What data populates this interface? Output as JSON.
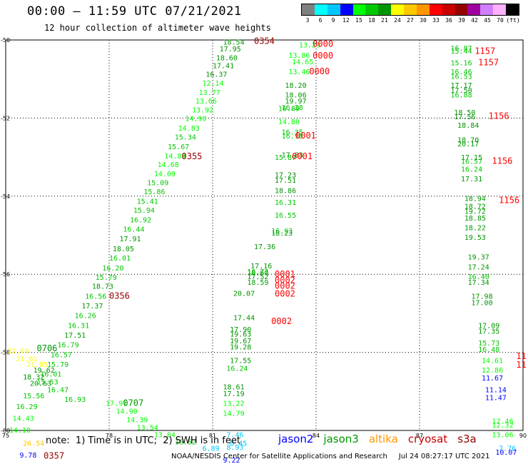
{
  "title": "00:00 – 11:59 UTC 07/21/2021",
  "subtitle": "12 hour collection of altimeter wave heights",
  "legend": {
    "labels": [
      "3",
      "6",
      "9",
      "12",
      "15",
      "18",
      "21",
      "24",
      "27",
      "30",
      "33",
      "36",
      "39",
      "42",
      "45",
      "70",
      "(ft)"
    ],
    "colors": [
      "#808080",
      "#00ffff",
      "#00c8ff",
      "#0000ff",
      "#00ff00",
      "#00c800",
      "#009600",
      "#ffff00",
      "#ffc800",
      "#ff9600",
      "#ff0000",
      "#c80000",
      "#960000",
      "#a000a0",
      "#d080ff",
      "#ffb0ff",
      "#000000"
    ]
  },
  "axes": {
    "lon": [
      75,
      90
    ],
    "lat": [
      -50,
      -60
    ],
    "x_ticks": [
      "75",
      "78",
      "81",
      "84",
      "87",
      "90"
    ],
    "y_ticks": [
      "-50",
      "-52",
      "-54",
      "-56",
      "-58",
      "-60"
    ],
    "grid": true
  },
  "wave_labels": [
    {
      "t": "18.54",
      "lon": 81.3,
      "lat": -50.05,
      "c": "#009600"
    },
    {
      "t": "17.95",
      "lon": 81.2,
      "lat": -50.22,
      "c": "#009600"
    },
    {
      "t": "18.60",
      "lon": 81.1,
      "lat": -50.45,
      "c": "#009600"
    },
    {
      "t": "17.41",
      "lon": 81.0,
      "lat": -50.65,
      "c": "#009600"
    },
    {
      "t": "16.37",
      "lon": 80.8,
      "lat": -50.87,
      "c": "#009600"
    },
    {
      "t": "12.14",
      "lon": 80.7,
      "lat": -51.1,
      "c": "#00ff00"
    },
    {
      "t": "13.77",
      "lon": 80.6,
      "lat": -51.33,
      "c": "#00ff00"
    },
    {
      "t": "13.66",
      "lon": 80.5,
      "lat": -51.55,
      "c": "#00ff00"
    },
    {
      "t": "13.92",
      "lon": 80.4,
      "lat": -51.78,
      "c": "#00ff00"
    },
    {
      "t": "14.90",
      "lon": 80.2,
      "lat": -52.0,
      "c": "#00ff00"
    },
    {
      "t": "14.83",
      "lon": 80.0,
      "lat": -52.25,
      "c": "#00ff00"
    },
    {
      "t": "15.34",
      "lon": 79.9,
      "lat": -52.48,
      "c": "#00c800"
    },
    {
      "t": "15.67",
      "lon": 79.7,
      "lat": -52.72,
      "c": "#00c800"
    },
    {
      "t": "14.89",
      "lon": 79.6,
      "lat": -52.96,
      "c": "#00ff00"
    },
    {
      "t": "14.68",
      "lon": 79.4,
      "lat": -53.18,
      "c": "#00ff00"
    },
    {
      "t": "14.09",
      "lon": 79.3,
      "lat": -53.42,
      "c": "#00ff00"
    },
    {
      "t": "15.09",
      "lon": 79.1,
      "lat": -53.65,
      "c": "#00c800"
    },
    {
      "t": "15.86",
      "lon": 79.0,
      "lat": -53.88,
      "c": "#00c800"
    },
    {
      "t": "15.41",
      "lon": 78.8,
      "lat": -54.12,
      "c": "#00c800"
    },
    {
      "t": "15.94",
      "lon": 78.7,
      "lat": -54.35,
      "c": "#00c800"
    },
    {
      "t": "16.92",
      "lon": 78.6,
      "lat": -54.6,
      "c": "#00c800"
    },
    {
      "t": "16.44",
      "lon": 78.4,
      "lat": -54.84,
      "c": "#00c800"
    },
    {
      "t": "17.91",
      "lon": 78.3,
      "lat": -55.08,
      "c": "#009600"
    },
    {
      "t": "18.05",
      "lon": 78.1,
      "lat": -55.34,
      "c": "#009600"
    },
    {
      "t": "16.01",
      "lon": 78.0,
      "lat": -55.58,
      "c": "#00c800"
    },
    {
      "t": "16.20",
      "lon": 77.8,
      "lat": -55.83,
      "c": "#00c800"
    },
    {
      "t": "15.79",
      "lon": 77.6,
      "lat": -56.07,
      "c": "#00c800"
    },
    {
      "t": "18.73",
      "lon": 77.5,
      "lat": -56.3,
      "c": "#009600"
    },
    {
      "t": "16.56",
      "lon": 77.3,
      "lat": -56.55,
      "c": "#00c800"
    },
    {
      "t": "17.37",
      "lon": 77.2,
      "lat": -56.8,
      "c": "#009600"
    },
    {
      "t": "16.26",
      "lon": 77.0,
      "lat": -57.05,
      "c": "#00c800"
    },
    {
      "t": "16.31",
      "lon": 76.8,
      "lat": -57.3,
      "c": "#00c800"
    },
    {
      "t": "17.51",
      "lon": 76.7,
      "lat": -57.55,
      "c": "#009600"
    },
    {
      "t": "16.79",
      "lon": 76.5,
      "lat": -57.8,
      "c": "#00c800"
    },
    {
      "t": "16.57",
      "lon": 76.3,
      "lat": -58.05,
      "c": "#00c800"
    },
    {
      "t": "15.79",
      "lon": 76.2,
      "lat": -58.3,
      "c": "#00c800"
    },
    {
      "t": "16.01",
      "lon": 76.0,
      "lat": -58.55,
      "c": "#00c800"
    },
    {
      "t": "15.53",
      "lon": 75.9,
      "lat": -58.75,
      "c": "#00c800"
    },
    {
      "t": "16.47",
      "lon": 76.2,
      "lat": -58.95,
      "c": "#00c800"
    },
    {
      "t": "15.56",
      "lon": 75.5,
      "lat": -59.1,
      "c": "#00c800"
    },
    {
      "t": "16.93",
      "lon": 76.7,
      "lat": -59.2,
      "c": "#00c800"
    },
    {
      "t": "16.29",
      "lon": 75.3,
      "lat": -59.38,
      "c": "#00c800"
    },
    {
      "t": "14.43",
      "lon": 75.2,
      "lat": -59.68,
      "c": "#00ff00"
    },
    {
      "t": "14.10",
      "lon": 75.1,
      "lat": -59.98,
      "c": "#00ff00"
    },
    {
      "t": "21.69",
      "lon": 75.05,
      "lat": -57.95,
      "c": "#ffff00"
    },
    {
      "t": "21.61",
      "lon": 75.3,
      "lat": -58.15,
      "c": "#ffff00"
    },
    {
      "t": "21.05",
      "lon": 75.6,
      "lat": -58.3,
      "c": "#ffff00"
    },
    {
      "t": "19.62",
      "lon": 75.8,
      "lat": -58.45,
      "c": "#009600"
    },
    {
      "t": "18.32",
      "lon": 75.5,
      "lat": -58.62,
      "c": "#009600"
    },
    {
      "t": "20.63",
      "lon": 75.7,
      "lat": -58.78,
      "c": "#009600"
    },
    {
      "t": "26.54",
      "lon": 75.5,
      "lat": -60.32,
      "c": "#ffc800"
    },
    {
      "t": "9.78",
      "lon": 75.4,
      "lat": -60.62,
      "c": "#0000ff"
    },
    {
      "t": "17.91",
      "lon": 77.9,
      "lat": -59.3,
      "c": "#00ff00"
    },
    {
      "t": "14.90",
      "lon": 78.2,
      "lat": -59.5,
      "c": "#00ff00"
    },
    {
      "t": "14.39",
      "lon": 78.5,
      "lat": -59.72,
      "c": "#00ff00"
    },
    {
      "t": "13.54",
      "lon": 78.8,
      "lat": -59.92,
      "c": "#00ff00"
    },
    {
      "t": "13.84",
      "lon": 79.3,
      "lat": -60.1,
      "c": "#00ff00"
    },
    {
      "t": "16.52",
      "lon": 79.9,
      "lat": -60.28,
      "c": "#00c800"
    },
    {
      "t": "6.89",
      "lon": 80.7,
      "lat": -60.45,
      "c": "#00c8ff"
    },
    {
      "t": "9.22",
      "lon": 81.3,
      "lat": -60.75,
      "c": "#0000ff"
    },
    {
      "t": "7.46",
      "lon": 81.4,
      "lat": -60.1,
      "c": "#00c8ff"
    },
    {
      "t": "8.45",
      "lon": 81.5,
      "lat": -60.32,
      "c": "#00c8ff"
    },
    {
      "t": "8.93",
      "lon": 81.4,
      "lat": -60.42,
      "c": "#00c8ff"
    },
    {
      "t": "18.61",
      "lon": 81.3,
      "lat": -58.88,
      "c": "#009600"
    },
    {
      "t": "17.19",
      "lon": 81.3,
      "lat": -59.05,
      "c": "#009600"
    },
    {
      "t": "13.22",
      "lon": 81.3,
      "lat": -59.3,
      "c": "#00ff00"
    },
    {
      "t": "14.79",
      "lon": 81.3,
      "lat": -59.55,
      "c": "#00ff00"
    },
    {
      "t": "17.55",
      "lon": 81.5,
      "lat": -58.2,
      "c": "#009600"
    },
    {
      "t": "16.24",
      "lon": 81.4,
      "lat": -58.4,
      "c": "#00c800"
    },
    {
      "t": "17.44",
      "lon": 81.6,
      "lat": -57.1,
      "c": "#009600"
    },
    {
      "t": "17.90",
      "lon": 81.5,
      "lat": -57.4,
      "c": "#009600"
    },
    {
      "t": "19.63",
      "lon": 81.5,
      "lat": -57.52,
      "c": "#009600"
    },
    {
      "t": "19.67",
      "lon": 81.5,
      "lat": -57.7,
      "c": "#009600"
    },
    {
      "t": "19.28",
      "lon": 81.5,
      "lat": -57.85,
      "c": "#009600"
    },
    {
      "t": "20.07",
      "lon": 81.6,
      "lat": -56.48,
      "c": "#009600"
    },
    {
      "t": "18.60",
      "lon": 82.0,
      "lat": -55.95,
      "c": "#009600"
    },
    {
      "t": "17.16",
      "lon": 82.1,
      "lat": -55.78,
      "c": "#009600"
    },
    {
      "t": "16.73",
      "lon": 82.0,
      "lat": -55.92,
      "c": "#00c800"
    },
    {
      "t": "17.52",
      "lon": 82.0,
      "lat": -56.05,
      "c": "#009600"
    },
    {
      "t": "18.59",
      "lon": 82.0,
      "lat": -56.2,
      "c": "#009600"
    },
    {
      "t": "17.36",
      "lon": 82.2,
      "lat": -55.28,
      "c": "#009600"
    },
    {
      "t": "16.93",
      "lon": 82.7,
      "lat": -54.88,
      "c": "#00c800"
    },
    {
      "t": "18.23",
      "lon": 82.7,
      "lat": -54.94,
      "c": "#009600"
    },
    {
      "t": "16.55",
      "lon": 82.8,
      "lat": -54.48,
      "c": "#00c800"
    },
    {
      "t": "16.31",
      "lon": 82.8,
      "lat": -54.15,
      "c": "#00c800"
    },
    {
      "t": "18.86",
      "lon": 82.8,
      "lat": -53.85,
      "c": "#009600"
    },
    {
      "t": "17.51",
      "lon": 82.8,
      "lat": -53.58,
      "c": "#009600"
    },
    {
      "t": "17.23",
      "lon": 82.8,
      "lat": -53.45,
      "c": "#009600"
    },
    {
      "t": "17.83",
      "lon": 83.0,
      "lat": -52.93,
      "c": "#009600"
    },
    {
      "t": "15.87",
      "lon": 82.8,
      "lat": -53.0,
      "c": "#00c800"
    },
    {
      "t": "16.35",
      "lon": 83.0,
      "lat": -52.35,
      "c": "#00c800"
    },
    {
      "t": "16.98",
      "lon": 83.0,
      "lat": -52.45,
      "c": "#00c800"
    },
    {
      "t": "14.80",
      "lon": 82.9,
      "lat": -52.08,
      "c": "#00ff00"
    },
    {
      "t": "16.89",
      "lon": 82.9,
      "lat": -51.75,
      "c": "#00c800"
    },
    {
      "t": "16.28",
      "lon": 83.0,
      "lat": -51.72,
      "c": "#00c800"
    },
    {
      "t": "19.97",
      "lon": 83.1,
      "lat": -51.55,
      "c": "#009600"
    },
    {
      "t": "18.06",
      "lon": 83.1,
      "lat": -51.4,
      "c": "#009600"
    },
    {
      "t": "18.20",
      "lon": 83.1,
      "lat": -51.15,
      "c": "#009600"
    },
    {
      "t": "13.46",
      "lon": 83.2,
      "lat": -50.8,
      "c": "#00ff00"
    },
    {
      "t": "14.65",
      "lon": 83.3,
      "lat": -50.55,
      "c": "#00ff00"
    },
    {
      "t": "13.86",
      "lon": 83.2,
      "lat": -50.38,
      "c": "#00ff00"
    },
    {
      "t": "13.29",
      "lon": 83.5,
      "lat": -50.12,
      "c": "#00ff00"
    },
    {
      "t": "16.87",
      "lon": 87.9,
      "lat": -50.2,
      "c": "#00c800"
    },
    {
      "t": "15.44",
      "lon": 87.9,
      "lat": -50.27,
      "c": "#00c800"
    },
    {
      "t": "15.16",
      "lon": 87.9,
      "lat": -50.58,
      "c": "#00c800"
    },
    {
      "t": "16.46",
      "lon": 87.9,
      "lat": -50.8,
      "c": "#00c800"
    },
    {
      "t": "16.53",
      "lon": 87.9,
      "lat": -50.92,
      "c": "#00c800"
    },
    {
      "t": "17.17",
      "lon": 87.9,
      "lat": -51.15,
      "c": "#009600"
    },
    {
      "t": "17.50",
      "lon": 87.9,
      "lat": -51.28,
      "c": "#009600"
    },
    {
      "t": "16.88",
      "lon": 87.9,
      "lat": -51.4,
      "c": "#00c800"
    },
    {
      "t": "18.50",
      "lon": 88.0,
      "lat": -51.85,
      "c": "#009600"
    },
    {
      "t": "17.56",
      "lon": 88.0,
      "lat": -51.96,
      "c": "#009600"
    },
    {
      "t": "18.84",
      "lon": 88.1,
      "lat": -52.18,
      "c": "#009600"
    },
    {
      "t": "18.70",
      "lon": 88.1,
      "lat": -52.55,
      "c": "#009600"
    },
    {
      "t": "20.17",
      "lon": 88.1,
      "lat": -52.65,
      "c": "#009600"
    },
    {
      "t": "17.15",
      "lon": 88.2,
      "lat": -53.0,
      "c": "#009600"
    },
    {
      "t": "16.57",
      "lon": 88.2,
      "lat": -53.1,
      "c": "#00c800"
    },
    {
      "t": "16.24",
      "lon": 88.2,
      "lat": -53.3,
      "c": "#00c800"
    },
    {
      "t": "17.31",
      "lon": 88.2,
      "lat": -53.55,
      "c": "#009600"
    },
    {
      "t": "18.94",
      "lon": 88.3,
      "lat": -54.05,
      "c": "#009600"
    },
    {
      "t": "18.72",
      "lon": 88.3,
      "lat": -54.25,
      "c": "#009600"
    },
    {
      "t": "19.72",
      "lon": 88.3,
      "lat": -54.38,
      "c": "#009600"
    },
    {
      "t": "18.85",
      "lon": 88.3,
      "lat": -54.55,
      "c": "#009600"
    },
    {
      "t": "18.22",
      "lon": 88.3,
      "lat": -54.8,
      "c": "#009600"
    },
    {
      "t": "19.53",
      "lon": 88.3,
      "lat": -55.05,
      "c": "#009600"
    },
    {
      "t": "19.37",
      "lon": 88.4,
      "lat": -55.55,
      "c": "#009600"
    },
    {
      "t": "17.24",
      "lon": 88.4,
      "lat": -55.8,
      "c": "#009600"
    },
    {
      "t": "16.40",
      "lon": 88.4,
      "lat": -56.05,
      "c": "#00c800"
    },
    {
      "t": "17.34",
      "lon": 88.4,
      "lat": -56.2,
      "c": "#009600"
    },
    {
      "t": "17.98",
      "lon": 88.5,
      "lat": -56.55,
      "c": "#009600"
    },
    {
      "t": "17.00",
      "lon": 88.5,
      "lat": -56.72,
      "c": "#009600"
    },
    {
      "t": "17.09",
      "lon": 88.7,
      "lat": -57.3,
      "c": "#009600"
    },
    {
      "t": "17.35",
      "lon": 88.7,
      "lat": -57.45,
      "c": "#009600"
    },
    {
      "t": "15.73",
      "lon": 88.7,
      "lat": -57.75,
      "c": "#00c800"
    },
    {
      "t": "16.48",
      "lon": 88.7,
      "lat": -57.92,
      "c": "#00c800"
    },
    {
      "t": "14.61",
      "lon": 88.8,
      "lat": -58.2,
      "c": "#00ff00"
    },
    {
      "t": "12.86",
      "lon": 88.8,
      "lat": -58.45,
      "c": "#00ff00"
    },
    {
      "t": "11.67",
      "lon": 88.8,
      "lat": -58.65,
      "c": "#0000ff"
    },
    {
      "t": "11.14",
      "lon": 88.9,
      "lat": -58.95,
      "c": "#0000ff"
    },
    {
      "t": "11.47",
      "lon": 88.9,
      "lat": -59.15,
      "c": "#0000ff"
    },
    {
      "t": "12.46",
      "lon": 89.1,
      "lat": -59.75,
      "c": "#00ff00"
    },
    {
      "t": "12.32",
      "lon": 89.1,
      "lat": -59.85,
      "c": "#00ff00"
    },
    {
      "t": "13.06",
      "lon": 89.1,
      "lat": -60.1,
      "c": "#00ff00"
    },
    {
      "t": "7.76",
      "lon": 89.3,
      "lat": -60.45,
      "c": "#00c8ff"
    },
    {
      "t": "10.07",
      "lon": 89.2,
      "lat": -60.55,
      "c": "#0000ff"
    }
  ],
  "time_tags": [
    {
      "t": "0354",
      "lon": 82.2,
      "lat": -50.03,
      "c": "#960000"
    },
    {
      "t": "0355",
      "lon": 80.1,
      "lat": -52.98,
      "c": "#960000"
    },
    {
      "t": "0356",
      "lon": 78.0,
      "lat": -56.55,
      "c": "#960000"
    },
    {
      "t": "0357",
      "lon": 76.1,
      "lat": -60.65,
      "c": "#960000"
    },
    {
      "t": "0706",
      "lon": 75.9,
      "lat": -57.9,
      "c": "#009600"
    },
    {
      "t": "0707",
      "lon": 78.4,
      "lat": -59.3,
      "c": "#009600"
    },
    {
      "t": "0000",
      "lon": 83.9,
      "lat": -50.1,
      "c": "#ff0000"
    },
    {
      "t": "0000",
      "lon": 83.9,
      "lat": -50.4,
      "c": "#ff0000"
    },
    {
      "t": "0000",
      "lon": 83.8,
      "lat": -50.8,
      "c": "#ff0000"
    },
    {
      "t": "0001",
      "lon": 83.4,
      "lat": -52.45,
      "c": "#ff0000"
    },
    {
      "t": "0001",
      "lon": 83.3,
      "lat": -52.98,
      "c": "#ff0000"
    },
    {
      "t": "0001",
      "lon": 82.8,
      "lat": -56.0,
      "c": "#ff0000"
    },
    {
      "t": "0002",
      "lon": 82.8,
      "lat": -56.15,
      "c": "#ff0000"
    },
    {
      "t": "0002",
      "lon": 82.8,
      "lat": -56.3,
      "c": "#ff0000"
    },
    {
      "t": "0002",
      "lon": 82.8,
      "lat": -56.5,
      "c": "#ff0000"
    },
    {
      "t": "0002",
      "lon": 82.7,
      "lat": -57.2,
      "c": "#ff0000"
    },
    {
      "t": "1157",
      "lon": 88.6,
      "lat": -50.28,
      "c": "#ff0000"
    },
    {
      "t": "1157",
      "lon": 88.7,
      "lat": -50.58,
      "c": "#ff0000"
    },
    {
      "t": "1156",
      "lon": 89.0,
      "lat": -51.95,
      "c": "#ff0000"
    },
    {
      "t": "1156",
      "lon": 89.1,
      "lat": -53.1,
      "c": "#ff0000"
    },
    {
      "t": "1156",
      "lon": 89.3,
      "lat": -54.1,
      "c": "#ff0000"
    },
    {
      "t": "11",
      "lon": 89.8,
      "lat": -58.1,
      "c": "#ff0000"
    },
    {
      "t": "11",
      "lon": 89.8,
      "lat": -58.32,
      "c": "#ff0000"
    }
  ],
  "note": "note:  1) Time is in UTC;  2) SWH is in feet",
  "satellites": [
    {
      "name": "jason2",
      "color": "#0000ff"
    },
    {
      "name": "jason3",
      "color": "#009600"
    },
    {
      "name": "altika",
      "color": "#ff9600"
    },
    {
      "name": "cryosat",
      "color": "#c80000"
    },
    {
      "name": "s3a",
      "color": "#960000"
    }
  ],
  "credit": "NOAA/NESDIS Center for Satellite Applications and Research     Jul 24 08:27:17 UTC 2021"
}
